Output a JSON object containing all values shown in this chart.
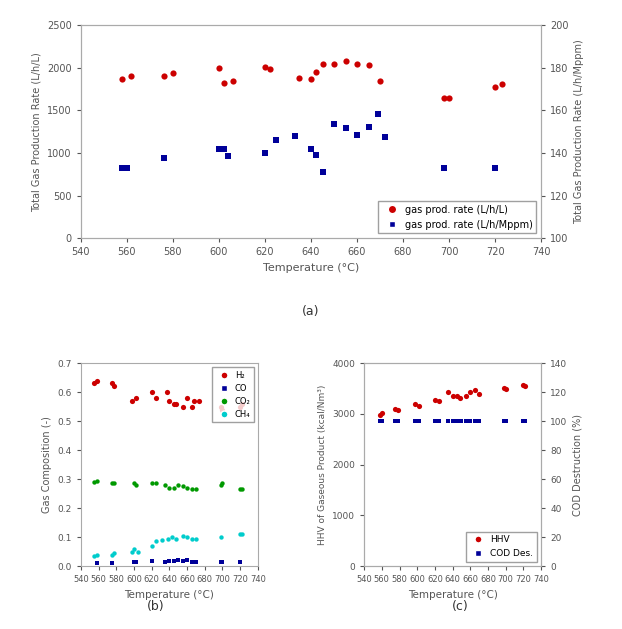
{
  "fig_width": 6.22,
  "fig_height": 6.29,
  "background_color": "#ffffff",
  "top_plot": {
    "xlabel": "Temperature (°C)",
    "ylabel_left": "Total Gas Production Rate (L/h/L)",
    "ylabel_right": "Total Gas Production Rate (L/h/Mppm)",
    "xlim": [
      540,
      740
    ],
    "ylim_left": [
      0,
      2500
    ],
    "ylim_right": [
      100,
      200
    ],
    "xticks": [
      540,
      560,
      580,
      600,
      620,
      640,
      660,
      680,
      700,
      720,
      740
    ],
    "yticks_left": [
      0,
      500,
      1000,
      1500,
      2000,
      2500
    ],
    "yticks_right": [
      100,
      120,
      140,
      160,
      180,
      200
    ],
    "red_x": [
      558,
      562,
      576,
      580,
      600,
      602,
      606,
      620,
      622,
      635,
      640,
      642,
      645,
      650,
      655,
      660,
      665,
      670,
      698,
      700,
      720,
      723
    ],
    "red_y": [
      1870,
      1900,
      1900,
      1940,
      2000,
      1820,
      1850,
      2010,
      1980,
      1880,
      1870,
      1950,
      2040,
      2040,
      2080,
      2050,
      2030,
      1850,
      1640,
      1650,
      1780,
      1810
    ],
    "blue_x": [
      558,
      560,
      576,
      600,
      602,
      604,
      620,
      625,
      633,
      640,
      642,
      645,
      650,
      655,
      660,
      665,
      669,
      672,
      698,
      720
    ],
    "blue_y": [
      830,
      820,
      940,
      1050,
      1050,
      970,
      1000,
      1150,
      1200,
      1050,
      980,
      780,
      1340,
      1290,
      1210,
      1300,
      1460,
      1190,
      820,
      820
    ],
    "legend_labels": [
      "gas prod. rate (L/h/L)",
      "gas prod. rate (L/h/Mppm)"
    ],
    "label_a": "(a)"
  },
  "bottom_left": {
    "xlabel": "Temperature (°C)",
    "ylabel": "Gas Composition (-)",
    "xlim": [
      540,
      740
    ],
    "ylim": [
      0.0,
      0.7
    ],
    "xticks": [
      540,
      560,
      580,
      600,
      620,
      640,
      660,
      680,
      700,
      720,
      740
    ],
    "yticks": [
      0.0,
      0.1,
      0.2,
      0.3,
      0.4,
      0.5,
      0.6,
      0.7
    ],
    "H2_x": [
      555,
      558,
      575,
      577,
      598,
      602,
      620,
      625,
      637,
      640,
      645,
      648,
      655,
      660,
      665,
      668,
      673,
      698,
      700,
      720,
      722
    ],
    "H2_y": [
      0.63,
      0.64,
      0.63,
      0.62,
      0.57,
      0.58,
      0.6,
      0.58,
      0.6,
      0.57,
      0.56,
      0.56,
      0.55,
      0.58,
      0.55,
      0.57,
      0.57,
      0.55,
      0.54,
      0.55,
      0.56
    ],
    "CO_x": [
      558,
      575,
      600,
      602,
      620,
      635,
      640,
      645,
      650,
      655,
      660,
      665,
      670,
      698,
      700,
      720
    ],
    "CO_y": [
      0.01,
      0.01,
      0.015,
      0.013,
      0.017,
      0.015,
      0.018,
      0.017,
      0.02,
      0.018,
      0.02,
      0.015,
      0.015,
      0.015,
      0.013,
      0.015
    ],
    "CO2_x": [
      555,
      558,
      575,
      578,
      600,
      602,
      620,
      625,
      635,
      640,
      645,
      650,
      655,
      660,
      665,
      670,
      698,
      700,
      720,
      722
    ],
    "CO2_y": [
      0.29,
      0.295,
      0.285,
      0.285,
      0.285,
      0.28,
      0.285,
      0.285,
      0.28,
      0.27,
      0.27,
      0.28,
      0.275,
      0.27,
      0.265,
      0.265,
      0.28,
      0.285,
      0.265,
      0.265
    ],
    "CH4_x": [
      555,
      558,
      575,
      578,
      598,
      600,
      605,
      620,
      625,
      632,
      638,
      643,
      648,
      655,
      660,
      665,
      670,
      698,
      720,
      722
    ],
    "CH4_y": [
      0.035,
      0.04,
      0.04,
      0.045,
      0.05,
      0.06,
      0.05,
      0.07,
      0.085,
      0.09,
      0.095,
      0.1,
      0.095,
      0.105,
      0.1,
      0.095,
      0.095,
      0.1,
      0.11,
      0.11
    ],
    "legend_labels": [
      "H₂",
      "CO",
      "CO₂",
      "CH₄"
    ],
    "label_b": "(b)"
  },
  "bottom_right": {
    "xlabel": "Temperature (°C)",
    "ylabel_left": "HHV of Gaseous Product (kcal/Nm³)",
    "ylabel_right": "COD Destruction (%)",
    "xlim": [
      540,
      740
    ],
    "ylim_left": [
      0,
      4000
    ],
    "ylim_right": [
      0,
      140
    ],
    "xticks": [
      540,
      560,
      580,
      600,
      620,
      640,
      660,
      680,
      700,
      720,
      740
    ],
    "yticks_left": [
      0,
      1000,
      2000,
      3000,
      4000
    ],
    "yticks_right": [
      0,
      20,
      40,
      60,
      80,
      100,
      120,
      140
    ],
    "HHV_x": [
      558,
      560,
      575,
      578,
      598,
      602,
      620,
      625,
      635,
      640,
      645,
      648,
      655,
      660,
      665,
      670,
      698,
      700,
      720,
      722
    ],
    "HHV_y": [
      2980,
      3020,
      3090,
      3080,
      3200,
      3150,
      3280,
      3250,
      3430,
      3360,
      3350,
      3320,
      3350,
      3430,
      3470,
      3400,
      3500,
      3490,
      3570,
      3550
    ],
    "COD_x": [
      558,
      560,
      575,
      578,
      598,
      602,
      620,
      625,
      635,
      640,
      645,
      650,
      655,
      660,
      665,
      670,
      698,
      700,
      720,
      722
    ],
    "COD_y_right": [
      100,
      100,
      100,
      100,
      100,
      100,
      100,
      100,
      100,
      100,
      100,
      100,
      100,
      100,
      100,
      100,
      100,
      100,
      100,
      100
    ],
    "legend_labels": [
      "HHV",
      "COD Des."
    ],
    "label_c": "(c)"
  }
}
